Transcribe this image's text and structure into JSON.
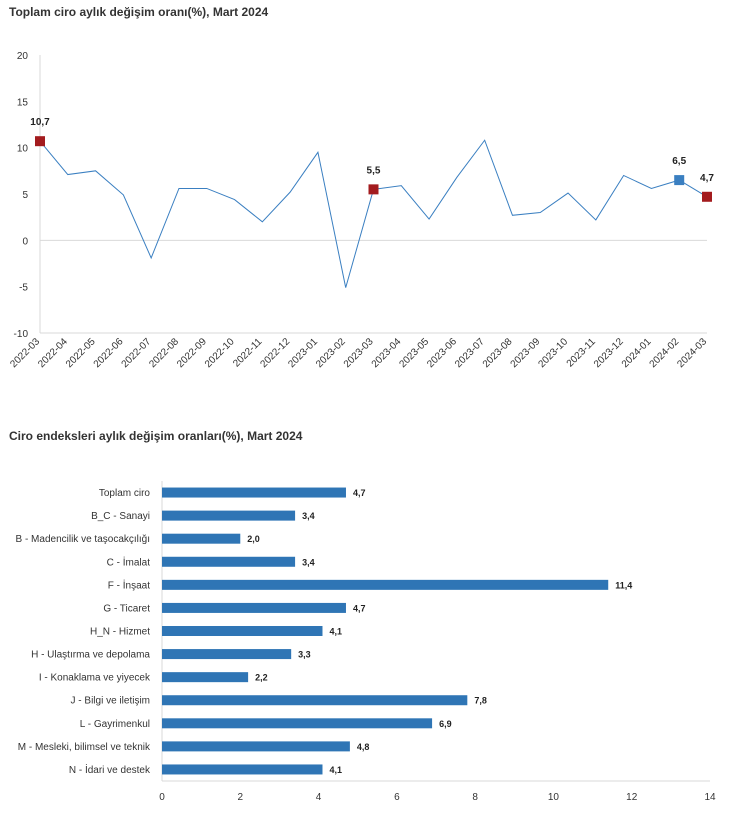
{
  "titles": {
    "line": "Toplam ciro aylık değişim oranı(%), Mart 2024",
    "bar": "Ciro endeksleri aylık değişim oranları(%), Mart 2024"
  },
  "colors": {
    "line": "#3a7fc1",
    "marker_red": "#a31b1e",
    "marker_blue": "#3a7fc1",
    "bar": "#2f75b5",
    "axis": "#d9d9d9",
    "text": "#333333"
  },
  "chart_data": [
    {
      "type": "line",
      "title": "Toplam ciro aylık değişim oranı(%), Mart 2024",
      "categories": [
        "2022-03",
        "2022-04",
        "2022-05",
        "2022-06",
        "2022-07",
        "2022-08",
        "2022-09",
        "2022-10",
        "2022-11",
        "2022-12",
        "2023-01",
        "2023-02",
        "2023-03",
        "2023-04",
        "2023-05",
        "2023-06",
        "2023-07",
        "2023-08",
        "2023-09",
        "2023-10",
        "2023-11",
        "2023-12",
        "2024-01",
        "2024-02",
        "2024-03"
      ],
      "values": [
        10.7,
        7.1,
        7.5,
        4.9,
        -1.9,
        5.6,
        5.6,
        4.4,
        2.0,
        5.2,
        9.5,
        -5.1,
        5.5,
        5.9,
        2.3,
        6.8,
        10.8,
        2.7,
        3.0,
        5.1,
        2.2,
        7.0,
        5.6,
        6.5,
        4.7
      ],
      "ylim": [
        -10,
        20
      ],
      "yticks": [
        "20",
        "15",
        "10",
        "5",
        "0",
        "-5",
        "-10"
      ],
      "ytick_values": [
        20,
        15,
        10,
        5,
        0,
        -5,
        -10
      ],
      "highlights": [
        {
          "index": 0,
          "label": "10,7",
          "color": "red"
        },
        {
          "index": 12,
          "label": "5,5",
          "color": "red"
        },
        {
          "index": 23,
          "label": "6,5",
          "color": "blue"
        },
        {
          "index": 24,
          "label": "4,7",
          "color": "red"
        }
      ]
    },
    {
      "type": "bar",
      "orientation": "horizontal",
      "title": "Ciro endeksleri aylık değişim oranları(%), Mart 2024",
      "categories": [
        "Toplam ciro",
        "B_C - Sanayi",
        "B - Madencilik ve taşocakçılığı",
        "C - İmalat",
        "F - İnşaat",
        "G - Ticaret",
        "H_N - Hizmet",
        "H - Ulaştırma ve depolama",
        "I - Konaklama ve yiyecek",
        "J - Bilgi ve iletişim",
        "L - Gayrimenkul",
        "M - Mesleki, bilimsel ve teknik",
        "N - İdari ve destek"
      ],
      "values": [
        4.7,
        3.4,
        2.0,
        3.4,
        11.4,
        4.7,
        4.1,
        3.3,
        2.2,
        7.8,
        6.9,
        4.8,
        4.1
      ],
      "value_labels": [
        "4,7",
        "3,4",
        "2,0",
        "3,4",
        "11,4",
        "4,7",
        "4,1",
        "3,3",
        "2,2",
        "7,8",
        "6,9",
        "4,8",
        "4,1"
      ],
      "xlim": [
        0,
        14
      ],
      "xticks": [
        "0",
        "2",
        "4",
        "6",
        "8",
        "10",
        "12",
        "14"
      ],
      "xtick_values": [
        0,
        2,
        4,
        6,
        8,
        10,
        12,
        14
      ]
    }
  ]
}
